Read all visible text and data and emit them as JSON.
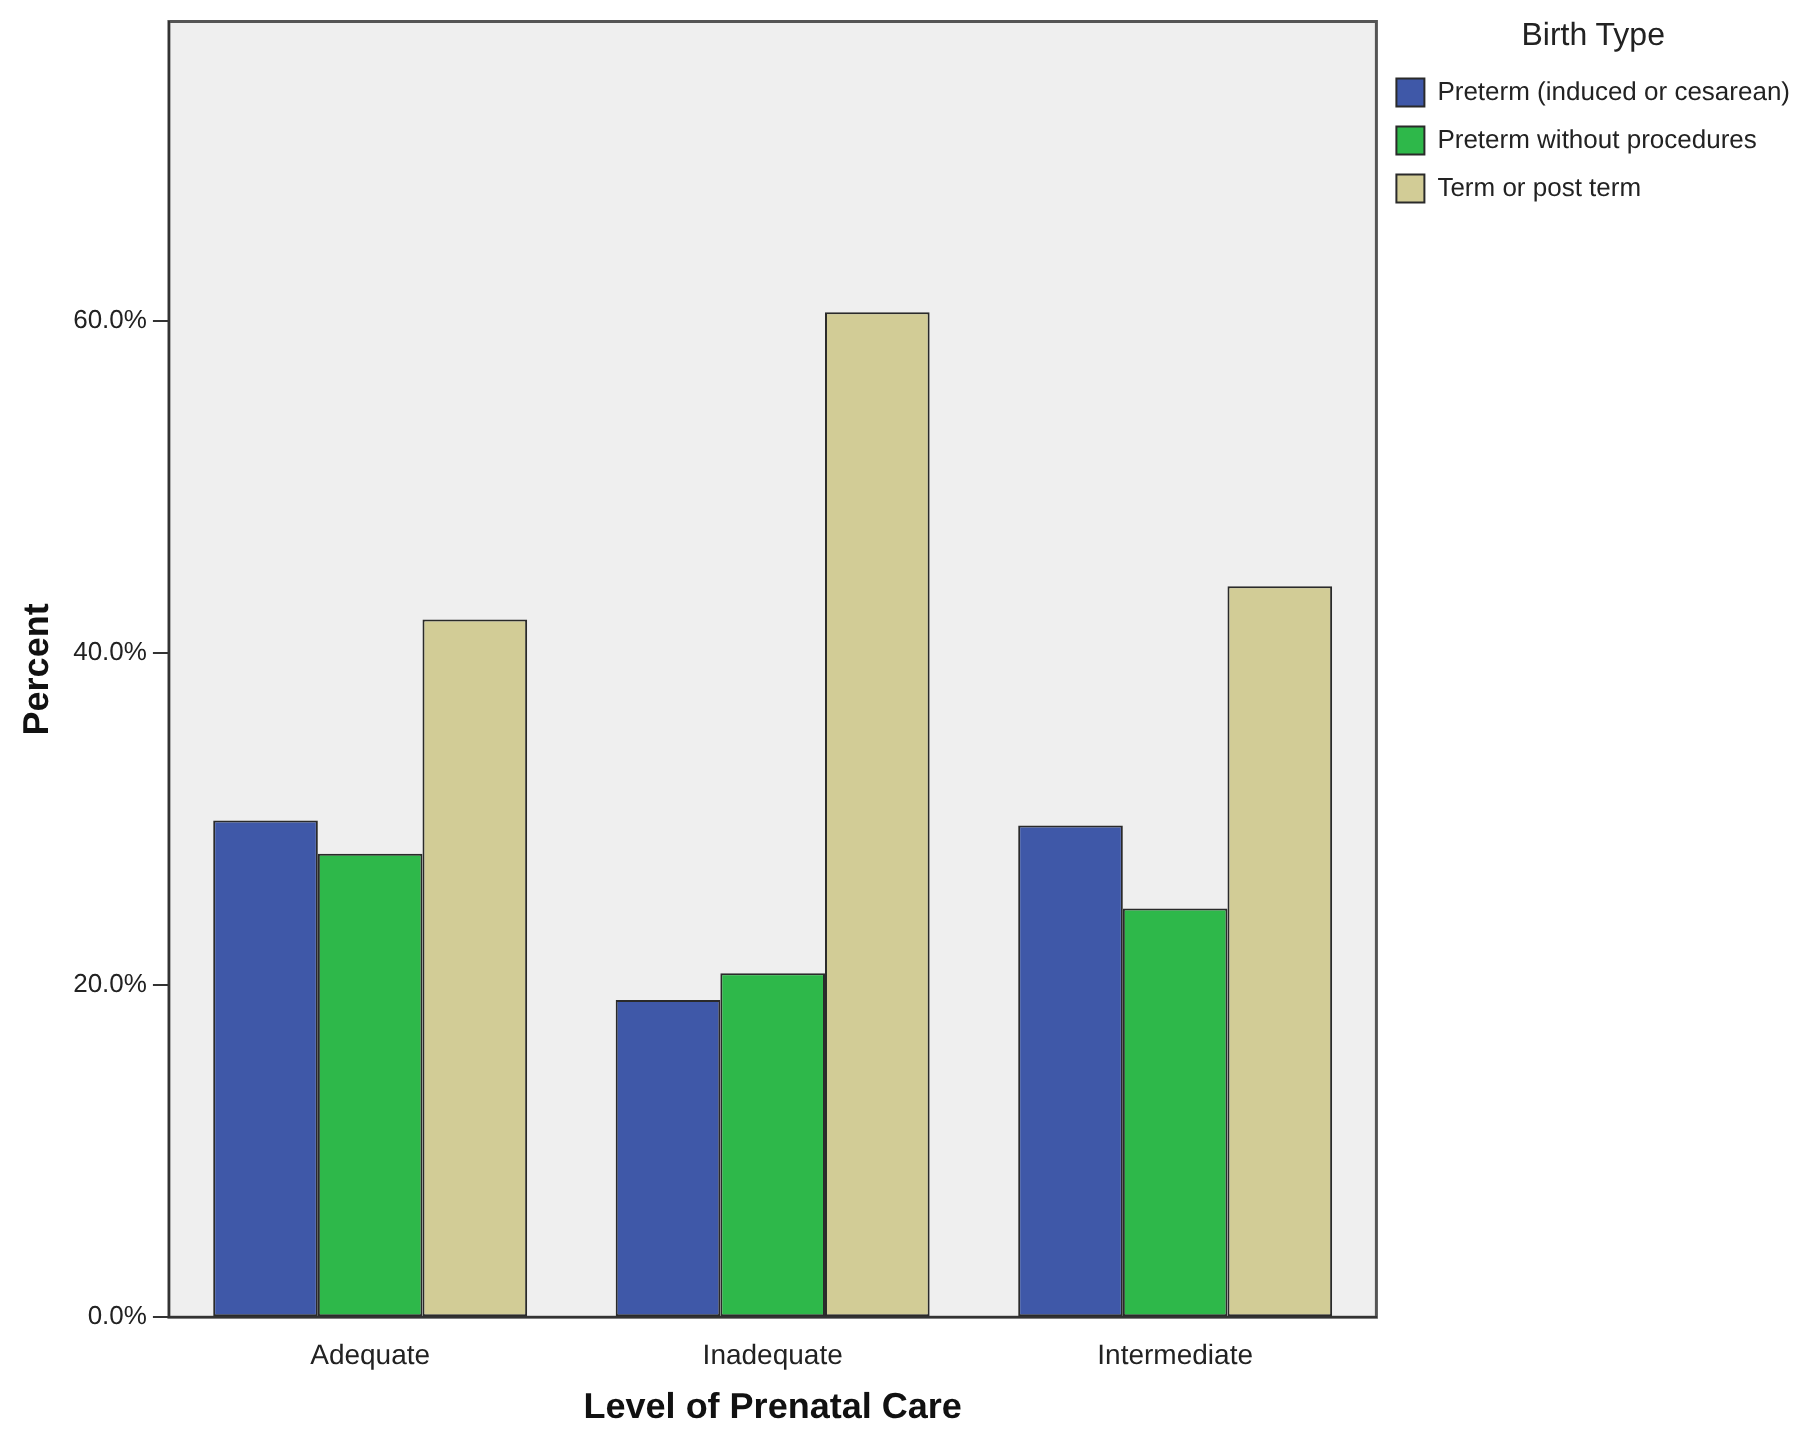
{
  "chart_data": {
    "type": "bar",
    "xlabel": "Level of Prenatal Care",
    "ylabel": "Percent",
    "legend_title": "Birth Type",
    "legend": "top right",
    "grid": false,
    "categories": [
      "Adequate",
      "Inadequate",
      "Intermediate"
    ],
    "series": [
      {
        "name": "Preterm (induced or cesarean)",
        "color": "#3f58a8",
        "values": [
          29.9,
          19.1,
          29.6
        ]
      },
      {
        "name": "Preterm without procedures",
        "color": "#2eb84a",
        "values": [
          27.9,
          20.7,
          24.6
        ]
      },
      {
        "name": "Term or post term",
        "color": "#d2cc96",
        "values": [
          42,
          60.5,
          44
        ]
      }
    ],
    "ylim": [
      0,
      78
    ],
    "yticks": [
      {
        "value": 0,
        "label": "0.0%"
      },
      {
        "value": 20,
        "label": "20.0%"
      },
      {
        "value": 40,
        "label": "40.0%"
      },
      {
        "value": 60,
        "label": "60.0%"
      }
    ]
  }
}
